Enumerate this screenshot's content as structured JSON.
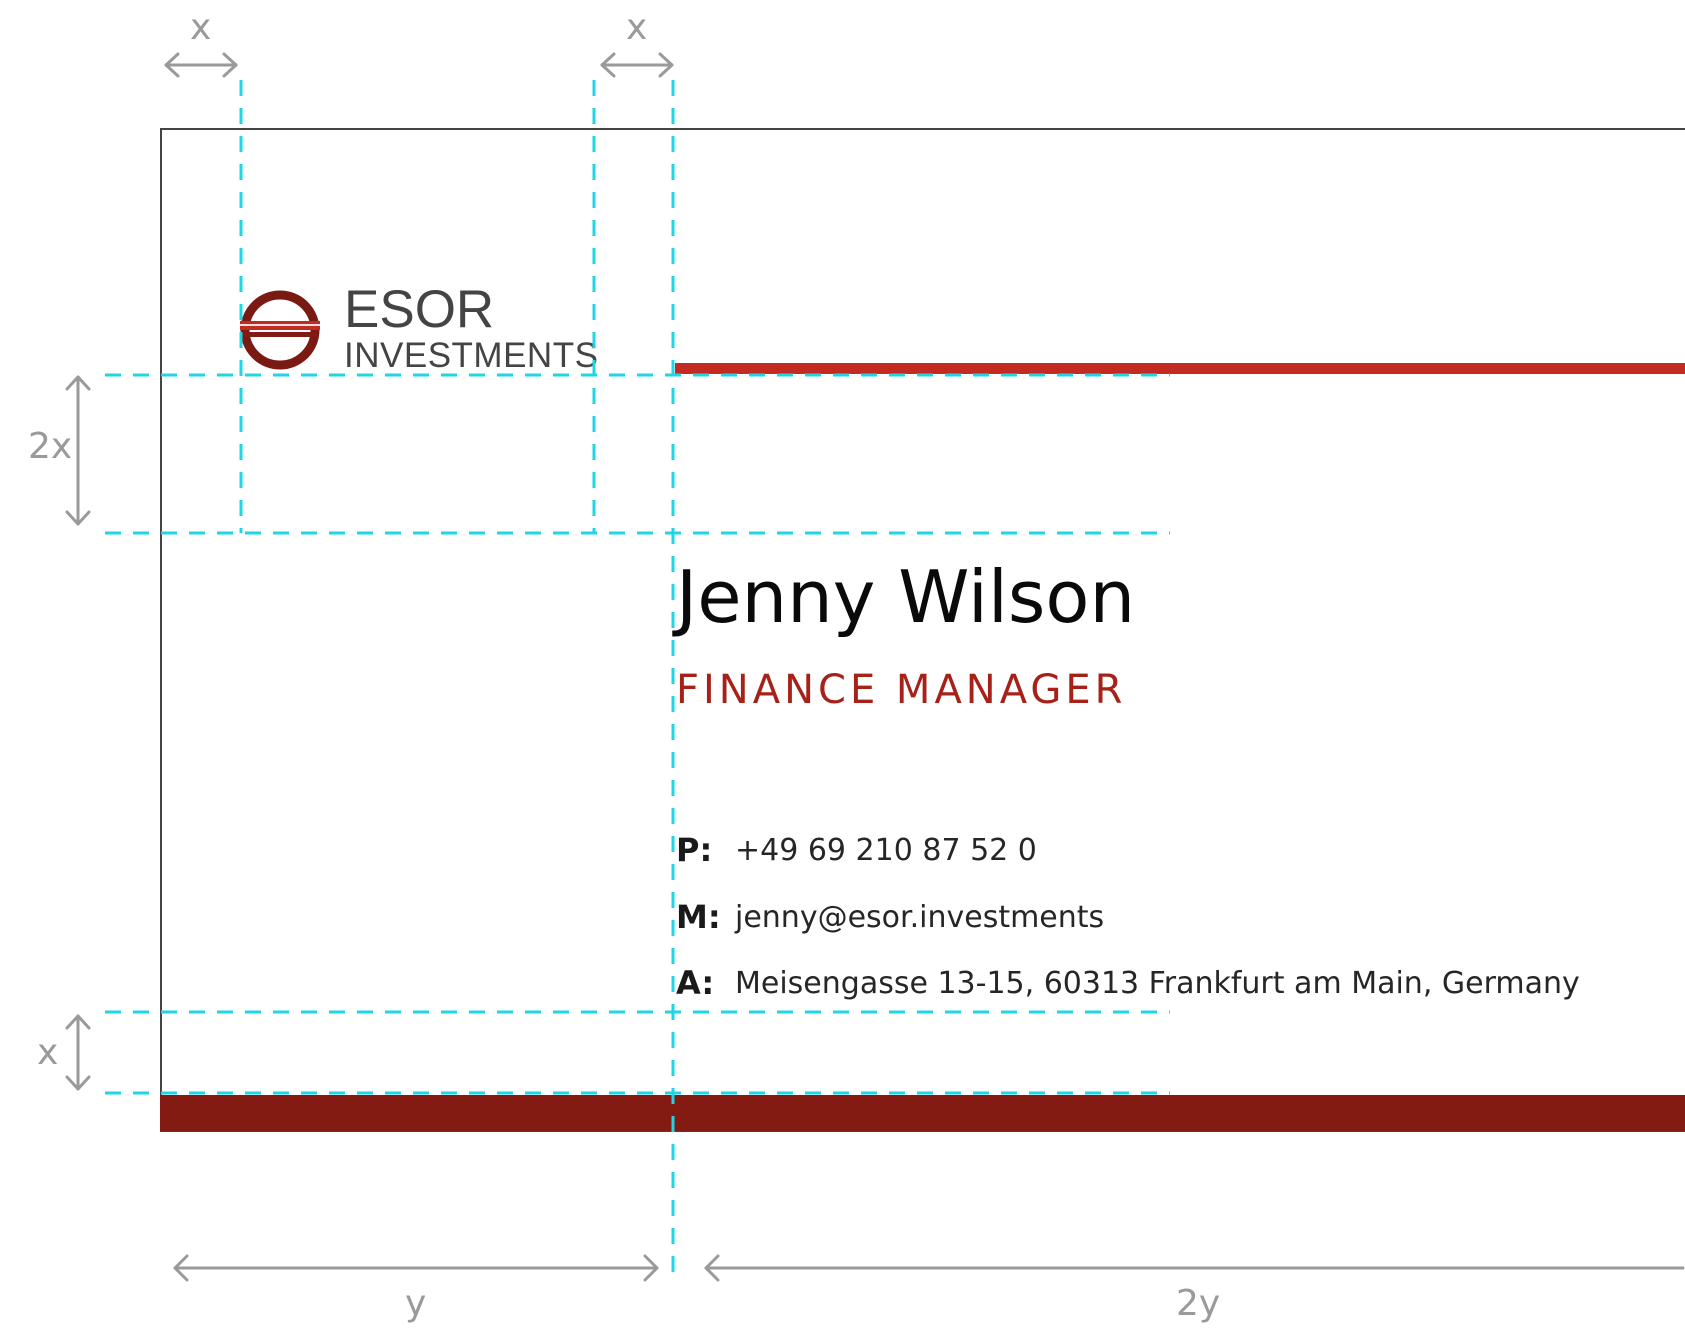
{
  "logo": {
    "wordmark": "ESOR",
    "subline": "INVESTMENTS"
  },
  "card": {
    "name": "Jenny Wilson",
    "title": "FINANCE MANAGER",
    "contacts": [
      {
        "key": "P:",
        "value": "+49 69 210 87 52 0"
      },
      {
        "key": "M:",
        "value": "jenny@esor.investments"
      },
      {
        "key": "A:",
        "value": "Meisengasse 13-15, 60313 Frankfurt am Main, Germany"
      }
    ]
  },
  "labels": {
    "top_left_x": "x",
    "top_mid_x": "x",
    "left_2x": "2x",
    "left_x": "x",
    "bottom_y": "y",
    "bottom_2y": "2y"
  },
  "colors": {
    "accent_red": "#c22b22",
    "dark_red": "#841b13",
    "title_red": "#a62219",
    "guide_cyan": "#1fd6e6",
    "dimension_gray": "#9a9a9a",
    "card_border": "#444444"
  }
}
